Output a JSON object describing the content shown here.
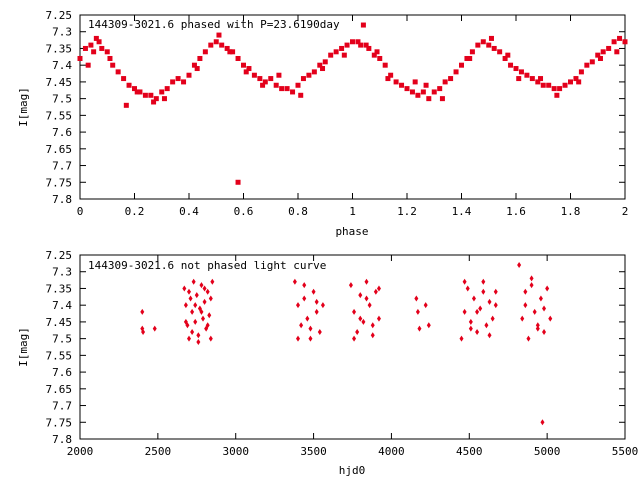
{
  "chart_data": [
    {
      "type": "scatter",
      "title": "144309-3021.6 phased with P=23.6190day",
      "xlabel": "phase",
      "ylabel": "I[mag]",
      "xlim": [
        0,
        2
      ],
      "ylim": [
        7.8,
        7.25
      ],
      "y_reversed": true,
      "xticks": [
        "0",
        "0.2",
        "0.4",
        "0.6",
        "0.8",
        "1",
        "1.2",
        "1.4",
        "1.6",
        "1.8",
        "2"
      ],
      "yticks": [
        "7.25",
        "7.3",
        "7.35",
        "7.4",
        "7.45",
        "7.5",
        "7.55",
        "7.6",
        "7.65",
        "7.7",
        "7.75",
        "7.8"
      ],
      "grid": false,
      "marker": "filled-square",
      "color": "#e3001b",
      "series": [
        {
          "name": "",
          "x": [
            0.0,
            0.02,
            0.04,
            0.05,
            0.06,
            0.08,
            0.1,
            0.12,
            0.14,
            0.16,
            0.17,
            0.18,
            0.2,
            0.22,
            0.24,
            0.26,
            0.28,
            0.3,
            0.32,
            0.34,
            0.36,
            0.38,
            0.4,
            0.42,
            0.44,
            0.46,
            0.48,
            0.5,
            0.52,
            0.54,
            0.56,
            0.58,
            0.6,
            0.62,
            0.64,
            0.66,
            0.68,
            0.7,
            0.72,
            0.74,
            0.76,
            0.78,
            0.8,
            0.82,
            0.84,
            0.86,
            0.88,
            0.9,
            0.92,
            0.94,
            0.96,
            0.98,
            1.0,
            1.02,
            1.04,
            1.05,
            1.06,
            1.08,
            1.1,
            1.12,
            1.14,
            1.16,
            1.18,
            1.2,
            1.22,
            1.24,
            1.26,
            1.28,
            1.3,
            1.32,
            1.34,
            1.36,
            1.38,
            1.4,
            1.42,
            1.44,
            1.46,
            1.48,
            1.5,
            1.52,
            1.54,
            1.56,
            1.58,
            1.6,
            1.62,
            1.64,
            1.66,
            1.68,
            1.7,
            1.72,
            1.74,
            1.76,
            1.78,
            1.8,
            1.82,
            1.84,
            1.86,
            1.88,
            1.9,
            1.92,
            1.94,
            1.96,
            1.98,
            2.0,
            0.58,
            0.03,
            0.07,
            0.11,
            0.21,
            0.27,
            0.31,
            0.43,
            0.51,
            0.55,
            0.61,
            0.67,
            0.73,
            0.81,
            0.89,
            0.97,
            1.03,
            1.09,
            1.13,
            1.23,
            1.27,
            1.33,
            1.43,
            1.51,
            1.57,
            1.61,
            1.69,
            1.75,
            1.83,
            1.91,
            1.97
          ],
          "y": [
            7.38,
            7.35,
            7.34,
            7.36,
            7.32,
            7.35,
            7.36,
            7.4,
            7.42,
            7.44,
            7.52,
            7.46,
            7.47,
            7.48,
            7.49,
            7.49,
            7.5,
            7.48,
            7.47,
            7.45,
            7.44,
            7.45,
            7.43,
            7.4,
            7.38,
            7.36,
            7.34,
            7.33,
            7.34,
            7.35,
            7.36,
            7.38,
            7.4,
            7.41,
            7.43,
            7.44,
            7.45,
            7.44,
            7.46,
            7.47,
            7.47,
            7.48,
            7.46,
            7.44,
            7.43,
            7.42,
            7.4,
            7.39,
            7.37,
            7.36,
            7.35,
            7.34,
            7.33,
            7.33,
            7.28,
            7.34,
            7.35,
            7.37,
            7.38,
            7.4,
            7.43,
            7.45,
            7.46,
            7.47,
            7.48,
            7.49,
            7.48,
            7.5,
            7.48,
            7.47,
            7.45,
            7.44,
            7.42,
            7.4,
            7.38,
            7.36,
            7.34,
            7.33,
            7.34,
            7.35,
            7.36,
            7.38,
            7.4,
            7.41,
            7.42,
            7.43,
            7.44,
            7.45,
            7.46,
            7.46,
            7.47,
            7.47,
            7.46,
            7.45,
            7.44,
            7.42,
            7.4,
            7.39,
            7.37,
            7.36,
            7.35,
            7.33,
            7.32,
            7.33,
            7.75,
            7.4,
            7.33,
            7.38,
            7.48,
            7.51,
            7.5,
            7.41,
            7.31,
            7.36,
            7.42,
            7.46,
            7.43,
            7.49,
            7.41,
            7.37,
            7.34,
            7.36,
            7.44,
            7.45,
            7.46,
            7.5,
            7.38,
            7.32,
            7.37,
            7.44,
            7.44,
            7.49,
            7.45,
            7.38,
            7.36
          ]
        }
      ]
    },
    {
      "type": "scatter",
      "title": "144309-3021.6 not phased light curve",
      "xlabel": "hjd0",
      "ylabel": "I[mag]",
      "xlim": [
        2000,
        5500
      ],
      "ylim": [
        7.8,
        7.25
      ],
      "y_reversed": true,
      "xticks": [
        "2000",
        "2500",
        "3000",
        "3500",
        "4000",
        "4500",
        "5000",
        "5500"
      ],
      "yticks": [
        "7.25",
        "7.3",
        "7.35",
        "7.4",
        "7.45",
        "7.5",
        "7.55",
        "7.6",
        "7.65",
        "7.7",
        "7.75",
        "7.8"
      ],
      "grid": false,
      "marker": "filled-diamond",
      "color": "#e3001b",
      "series": [
        {
          "name": "",
          "x": [
            2400,
            2400,
            2405,
            2480,
            2670,
            2680,
            2690,
            2700,
            2710,
            2720,
            2730,
            2740,
            2750,
            2760,
            2770,
            2780,
            2790,
            2800,
            2810,
            2820,
            2830,
            2840,
            2850,
            2680,
            2700,
            2720,
            2740,
            2760,
            2780,
            2800,
            2820,
            2840,
            3380,
            3400,
            3420,
            3440,
            3460,
            3480,
            3500,
            3520,
            3540,
            3560,
            3400,
            3440,
            3480,
            3520,
            3740,
            3760,
            3780,
            3800,
            3820,
            3840,
            3860,
            3880,
            3900,
            3920,
            3760,
            3800,
            3840,
            3880,
            3920,
            4160,
            4170,
            4180,
            4220,
            4240,
            4450,
            4470,
            4490,
            4510,
            4530,
            4550,
            4570,
            4590,
            4610,
            4630,
            4650,
            4670,
            4470,
            4510,
            4550,
            4590,
            4630,
            4670,
            4820,
            4840,
            4860,
            4880,
            4900,
            4920,
            4940,
            4960,
            4980,
            5000,
            5020,
            4860,
            4900,
            4940,
            4980,
            4970
          ],
          "y": [
            7.42,
            7.47,
            7.48,
            7.47,
            7.35,
            7.4,
            7.46,
            7.5,
            7.38,
            7.42,
            7.33,
            7.45,
            7.37,
            7.49,
            7.41,
            7.34,
            7.44,
            7.39,
            7.47,
            7.36,
            7.43,
            7.5,
            7.33,
            7.45,
            7.36,
            7.48,
            7.4,
            7.51,
            7.42,
            7.35,
            7.46,
            7.38,
            7.33,
            7.4,
            7.46,
            7.38,
            7.44,
            7.5,
            7.36,
            7.42,
            7.48,
            7.4,
            7.5,
            7.34,
            7.47,
            7.39,
            7.34,
            7.42,
            7.48,
            7.37,
            7.45,
            7.33,
            7.4,
            7.49,
            7.36,
            7.44,
            7.5,
            7.44,
            7.38,
            7.46,
            7.35,
            7.38,
            7.42,
            7.47,
            7.4,
            7.46,
            7.5,
            7.42,
            7.35,
            7.45,
            7.38,
            7.48,
            7.41,
            7.33,
            7.46,
            7.39,
            7.44,
            7.36,
            7.33,
            7.47,
            7.42,
            7.36,
            7.49,
            7.4,
            7.28,
            7.44,
            7.36,
            7.5,
            7.32,
            7.42,
            7.46,
            7.38,
            7.48,
            7.35,
            7.44,
            7.4,
            7.34,
            7.47,
            7.41,
            7.75
          ]
        }
      ]
    }
  ]
}
